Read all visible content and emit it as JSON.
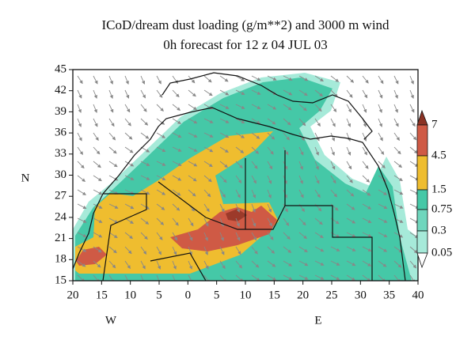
{
  "title": "ICoD/dream dust loading (g/m**2) and 3000 m wind",
  "subtitle": "0h forecast for 12 z 04 JUL 03",
  "lat_ticks": [
    15,
    18,
    21,
    24,
    27,
    30,
    33,
    36,
    39,
    42,
    45
  ],
  "lon_ticks": [
    20,
    15,
    10,
    5,
    0,
    5,
    10,
    15,
    20,
    25,
    30,
    35,
    40
  ],
  "lat_label": "N",
  "lon_labels": [
    "W",
    "E"
  ],
  "colorbar": [
    7,
    4.5,
    1.5,
    0.75,
    0.3,
    0.05
  ]
}
